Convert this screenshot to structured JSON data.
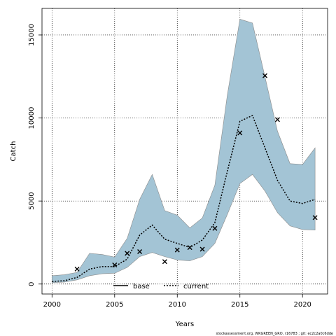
{
  "chart_data": {
    "type": "area",
    "xlabel": "Years",
    "ylabel": "Catch",
    "xlim": [
      1999.2,
      2022.0
    ],
    "ylim": [
      -600,
      16600
    ],
    "xticks": [
      2000,
      2005,
      2010,
      2015,
      2020
    ],
    "yticks": [
      0,
      5000,
      10000,
      15000
    ],
    "grid": true,
    "legend_position": "bottom-center",
    "legend": [
      {
        "name": "base",
        "style": "solid"
      },
      {
        "name": "current",
        "style": "dotted"
      }
    ],
    "band": {
      "x": [
        2000,
        2001,
        2002,
        2003,
        2004,
        2005,
        2006,
        2007,
        2008,
        2009,
        2010,
        2011,
        2012,
        2013,
        2014,
        2015,
        2016,
        2017,
        2018,
        2019,
        2020,
        2021
      ],
      "lower": [
        80,
        120,
        250,
        500,
        620,
        650,
        1000,
        1650,
        1900,
        1650,
        1450,
        1400,
        1650,
        2450,
        4200,
        6050,
        6600,
        5600,
        4300,
        3500,
        3280,
        3250
      ],
      "upper": [
        500,
        560,
        700,
        1850,
        1780,
        1620,
        2750,
        5100,
        6600,
        4420,
        4150,
        3380,
        3980,
        5950,
        11400,
        15950,
        15720,
        12480,
        9200,
        7250,
        7200,
        8200
      ],
      "color": "#a3c4d5"
    },
    "series": [
      {
        "name": "current",
        "x": [
          2000,
          2001,
          2002,
          2003,
          2004,
          2005,
          2006,
          2007,
          2008,
          2009,
          2010,
          2011,
          2012,
          2013,
          2014,
          2015,
          2016,
          2017,
          2018,
          2019,
          2020,
          2021
        ],
        "values": [
          150,
          200,
          400,
          900,
          1050,
          1050,
          1500,
          2950,
          3550,
          2700,
          2450,
          2200,
          2650,
          3700,
          6800,
          9800,
          10150,
          8200,
          6250,
          5000,
          4850,
          5100
        ]
      }
    ],
    "observed": {
      "marker": "x",
      "x": [
        2002,
        2005,
        2006,
        2007,
        2009,
        2010,
        2011,
        2012,
        2013,
        2015,
        2017,
        2018,
        2021
      ],
      "values": [
        900,
        1150,
        1850,
        1950,
        1350,
        2050,
        2200,
        2100,
        3350,
        9100,
        12550,
        9900,
        4000
      ]
    }
  },
  "footer": "stockassessment.org, WKGREEN_GRO, r16783 ; git: ec2c2a0c6dde"
}
